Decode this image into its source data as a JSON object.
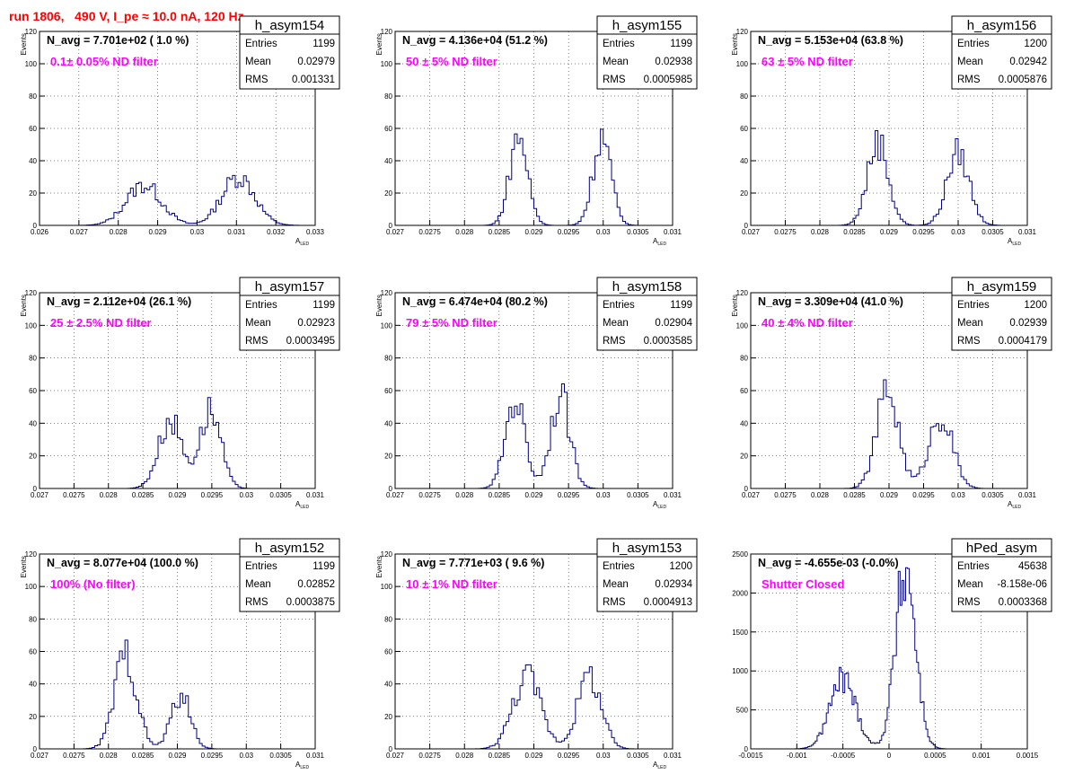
{
  "header": {
    "title": "run 1806,   490 V, I_pe ≈ 10.0 nA, 120 Hz"
  },
  "stats_labels": {
    "entries": "Entries",
    "mean": "Mean",
    "rms": "RMS"
  },
  "colors": {
    "hist": "#000080",
    "title": "#ff0000",
    "filter": "#ff00ff",
    "grid": "#000000"
  },
  "chart_data": [
    {
      "type": "bar",
      "name": "h_asym154",
      "navg": "N_avg = 7.701e+02 ( 1.0 %)",
      "filter": "0.1± 0.05% ND filter",
      "entries": "1199",
      "mean": "0.02979",
      "rms": "0.001331",
      "xlim": [
        0.026,
        0.033
      ],
      "ylim": [
        0,
        120
      ],
      "xticks": [
        "0.026",
        "0.027",
        "0.028",
        "0.029",
        "0.03",
        "0.031",
        "0.032",
        "0.033"
      ],
      "yticks": [
        "0",
        "20",
        "40",
        "60",
        "80",
        "100",
        "120"
      ],
      "xlabel": "A",
      "xlabel_sub": "LED",
      "ylabel": "Events",
      "grid": true,
      "bins": 100,
      "peaks": [
        {
          "mu": 0.02865,
          "sigma": 0.00045,
          "amp": 25
        },
        {
          "mu": 0.03105,
          "sigma": 0.00042,
          "amp": 30
        }
      ]
    },
    {
      "type": "bar",
      "name": "h_asym155",
      "navg": "N_avg = 4.136e+04 (51.2 %)",
      "filter": "50 ± 5% ND filter",
      "entries": "1199",
      "mean": "0.02938",
      "rms": "0.0005985",
      "xlim": [
        0.027,
        0.031
      ],
      "ylim": [
        0,
        120
      ],
      "xticks": [
        "0.027",
        "0.0275",
        "0.028",
        "0.0285",
        "0.029",
        "0.0295",
        "0.03",
        "0.0305",
        "0.031"
      ],
      "yticks": [
        "0",
        "20",
        "40",
        "60",
        "80",
        "100",
        "120"
      ],
      "xlabel": "A",
      "xlabel_sub": "LED",
      "ylabel": "Events",
      "grid": true,
      "bins": 100,
      "peaks": [
        {
          "mu": 0.02878,
          "sigma": 0.00013,
          "amp": 55
        },
        {
          "mu": 0.02998,
          "sigma": 0.00013,
          "amp": 55
        }
      ]
    },
    {
      "type": "bar",
      "name": "h_asym156",
      "navg": "N_avg = 5.153e+04 (63.8 %)",
      "filter": "63 ± 5% ND filter",
      "entries": "1200",
      "mean": "0.02942",
      "rms": "0.0005876",
      "xlim": [
        0.027,
        0.031
      ],
      "ylim": [
        0,
        120
      ],
      "xticks": [
        "0.027",
        "0.0275",
        "0.028",
        "0.0285",
        "0.029",
        "0.0295",
        "0.03",
        "0.0305",
        "0.031"
      ],
      "yticks": [
        "0",
        "20",
        "40",
        "60",
        "80",
        "100",
        "120"
      ],
      "xlabel": "A",
      "xlabel_sub": "LED",
      "ylabel": "Events",
      "grid": true,
      "bins": 100,
      "peaks": [
        {
          "mu": 0.02884,
          "sigma": 0.00015,
          "amp": 52
        },
        {
          "mu": 0.03,
          "sigma": 0.00016,
          "amp": 45
        }
      ]
    },
    {
      "type": "bar",
      "name": "h_asym157",
      "navg": "N_avg = 2.112e+04 (26.1 %)",
      "filter": "25 ± 2.5% ND filter",
      "entries": "1199",
      "mean": "0.02923",
      "rms": "0.0003495",
      "xlim": [
        0.027,
        0.031
      ],
      "ylim": [
        0,
        120
      ],
      "xticks": [
        "0.027",
        "0.0275",
        "0.028",
        "0.0285",
        "0.029",
        "0.0295",
        "0.03",
        "0.0305",
        "0.031"
      ],
      "yticks": [
        "0",
        "20",
        "40",
        "60",
        "80",
        "100",
        "120"
      ],
      "xlabel": "A",
      "xlabel_sub": "LED",
      "ylabel": "Events",
      "grid": true,
      "bins": 100,
      "peaks": [
        {
          "mu": 0.0289,
          "sigma": 0.00017,
          "amp": 42
        },
        {
          "mu": 0.02948,
          "sigma": 0.00015,
          "amp": 48
        }
      ]
    },
    {
      "type": "bar",
      "name": "h_asym158",
      "navg": "N_avg = 6.474e+04 (80.2 %)",
      "filter": "79 ± 5% ND filter",
      "entries": "1199",
      "mean": "0.02904",
      "rms": "0.0003585",
      "xlim": [
        0.027,
        0.031
      ],
      "ylim": [
        0,
        120
      ],
      "xticks": [
        "0.027",
        "0.0275",
        "0.028",
        "0.0285",
        "0.029",
        "0.0295",
        "0.03",
        "0.0305",
        "0.031"
      ],
      "yticks": [
        "0",
        "20",
        "40",
        "60",
        "80",
        "100",
        "120"
      ],
      "xlabel": "A",
      "xlabel_sub": "LED",
      "ylabel": "Events",
      "grid": true,
      "bins": 100,
      "peaks": [
        {
          "mu": 0.02873,
          "sigma": 0.00014,
          "amp": 55
        },
        {
          "mu": 0.02938,
          "sigma": 0.00014,
          "amp": 57
        }
      ]
    },
    {
      "type": "bar",
      "name": "h_asym159",
      "navg": "N_avg = 3.309e+04 (41.0 %)",
      "filter": "40 ± 4% ND filter",
      "entries": "1200",
      "mean": "0.02939",
      "rms": "0.0004179",
      "xlim": [
        0.027,
        0.031
      ],
      "ylim": [
        0,
        120
      ],
      "xticks": [
        "0.027",
        "0.0275",
        "0.028",
        "0.0285",
        "0.029",
        "0.0295",
        "0.03",
        "0.0305",
        "0.031"
      ],
      "yticks": [
        "0",
        "20",
        "40",
        "60",
        "80",
        "100",
        "120"
      ],
      "xlabel": "A",
      "xlabel_sub": "LED",
      "ylabel": "Events",
      "grid": true,
      "bins": 100,
      "peaks": [
        {
          "mu": 0.02898,
          "sigma": 0.00016,
          "amp": 60
        },
        {
          "mu": 0.02975,
          "sigma": 0.00017,
          "amp": 45
        }
      ]
    },
    {
      "type": "bar",
      "name": "h_asym152",
      "navg": "N_avg = 8.077e+04 (100.0 %)",
      "filter": "100% (No filter)",
      "entries": "1199",
      "mean": "0.02852",
      "rms": "0.0003875",
      "xlim": [
        0.027,
        0.031
      ],
      "ylim": [
        0,
        120
      ],
      "xticks": [
        "0.027",
        "0.0275",
        "0.028",
        "0.0285",
        "0.029",
        "0.0295",
        "0.03",
        "0.0305",
        "0.031"
      ],
      "yticks": [
        "0",
        "20",
        "40",
        "60",
        "80",
        "100",
        "120"
      ],
      "xlabel": "A",
      "xlabel_sub": "LED",
      "ylabel": "Events",
      "grid": true,
      "bins": 100,
      "peaks": [
        {
          "mu": 0.02825,
          "sigma": 0.00016,
          "amp": 58
        },
        {
          "mu": 0.02905,
          "sigma": 0.00014,
          "amp": 33
        }
      ]
    },
    {
      "type": "bar",
      "name": "h_asym153",
      "navg": "N_avg = 7.771e+03 ( 9.6 %)",
      "filter": "10 ± 1% ND filter",
      "entries": "1200",
      "mean": "0.02934",
      "rms": "0.0004913",
      "xlim": [
        0.027,
        0.031
      ],
      "ylim": [
        0,
        120
      ],
      "xticks": [
        "0.027",
        "0.0275",
        "0.028",
        "0.0285",
        "0.029",
        "0.0295",
        "0.03",
        "0.0305",
        "0.031"
      ],
      "yticks": [
        "0",
        "20",
        "40",
        "60",
        "80",
        "100",
        "120"
      ],
      "xlabel": "A",
      "xlabel_sub": "LED",
      "ylabel": "Events",
      "grid": true,
      "bins": 100,
      "peaks": [
        {
          "mu": 0.0289,
          "sigma": 0.0002,
          "amp": 45
        },
        {
          "mu": 0.0298,
          "sigma": 0.00017,
          "amp": 45
        }
      ]
    },
    {
      "type": "bar",
      "name": "hPed_asym",
      "navg": "N_avg = -4.655e-03 (-0.0%)",
      "filter": "Shutter Closed",
      "entries": "45638",
      "mean": "-8.158e-06",
      "rms": "0.0003368",
      "xlim": [
        -0.0015,
        0.0015
      ],
      "ylim": [
        0,
        2500
      ],
      "xticks": [
        "-0.0015",
        "-0.001",
        "-0.0005",
        "0",
        "0.0005",
        "0.001",
        "0.0015"
      ],
      "yticks": [
        "0",
        "500",
        "1000",
        "1500",
        "2000",
        "2500"
      ],
      "xlabel": "",
      "xlabel_sub": "",
      "ylabel": "",
      "grid": true,
      "bins": 150,
      "peaks": [
        {
          "mu": -0.0005,
          "sigma": 0.00014,
          "amp": 900
        },
        {
          "mu": 0.00018,
          "sigma": 0.00011,
          "amp": 2300
        }
      ]
    }
  ]
}
